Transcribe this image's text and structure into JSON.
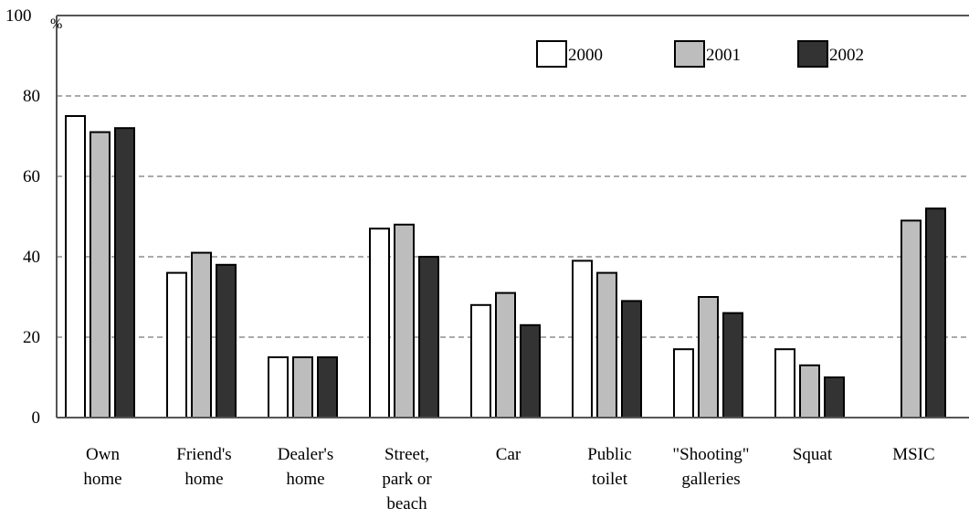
{
  "chart_data": {
    "type": "bar",
    "categories": [
      [
        "Own",
        "home"
      ],
      [
        "Friend's",
        "home"
      ],
      [
        "Dealer's",
        "home"
      ],
      [
        "Street,",
        "park or",
        "beach"
      ],
      [
        "Car"
      ],
      [
        "Public",
        "toilet"
      ],
      [
        "\"Shooting\"",
        "galleries"
      ],
      [
        "Squat"
      ],
      [
        "MSIC"
      ]
    ],
    "series": [
      {
        "name": "2000",
        "color": "#ffffff",
        "values": [
          75,
          36,
          15,
          47,
          28,
          39,
          17,
          17,
          null
        ]
      },
      {
        "name": "2001",
        "color": "#bdbdbd",
        "values": [
          71,
          41,
          15,
          48,
          31,
          36,
          30,
          13,
          49
        ]
      },
      {
        "name": "2002",
        "color": "#333333",
        "values": [
          72,
          38,
          15,
          40,
          23,
          29,
          26,
          10,
          52
        ]
      }
    ],
    "ylim": [
      0,
      100
    ],
    "yticks": [
      "0",
      "20",
      "40",
      "60",
      "80",
      "100"
    ],
    "yunit": "%",
    "grid": "dashed horizontal",
    "legend": "top-right"
  }
}
